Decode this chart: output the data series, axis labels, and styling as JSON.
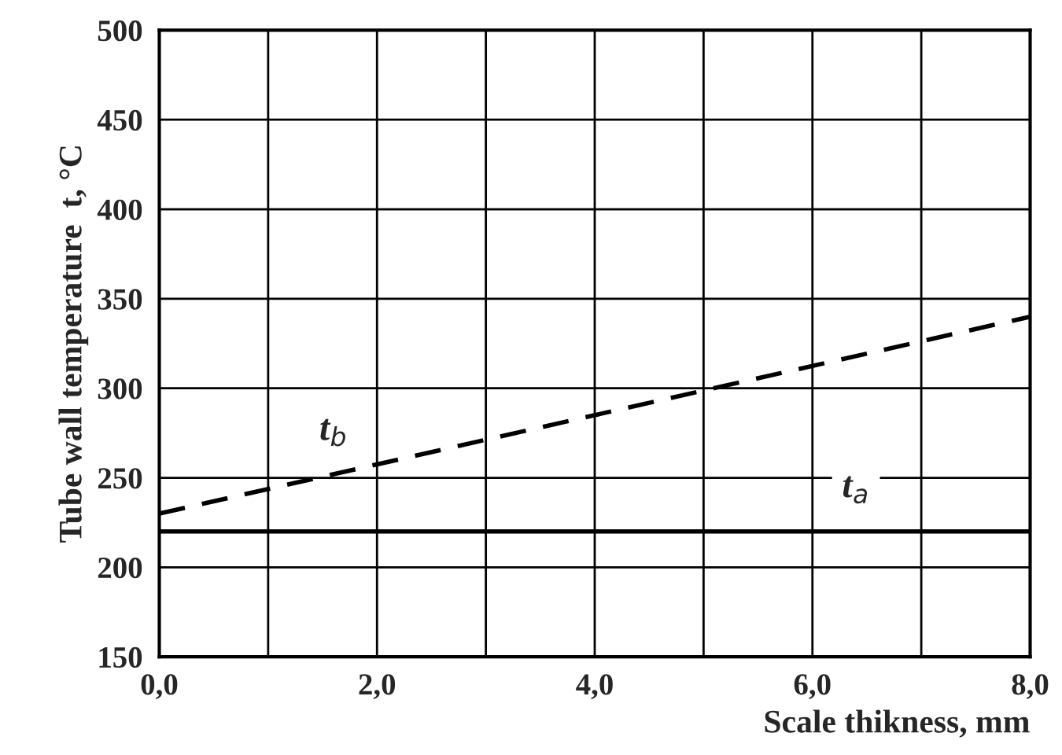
{
  "chart_data": {
    "type": "line",
    "xlabel": "Scale thikness, mm",
    "ylabel": "Tube wall temperature  t, °C",
    "x": [
      0,
      8
    ],
    "series": [
      {
        "name": "t$_{a}$",
        "color": "#000000",
        "values": [
          220,
          220
        ],
        "line_style": "solid"
      },
      {
        "name": "t$_{b}$",
        "color": "#000000",
        "values": [
          230,
          340
        ],
        "line_style": "dashed"
      }
    ],
    "xlim": [
      0,
      8
    ],
    "ylim": [
      150,
      500
    ],
    "xticks": [
      {
        "value": 0,
        "label": "0,0"
      },
      {
        "value": 1,
        "label": null
      },
      {
        "value": 2,
        "label": "2,0"
      },
      {
        "value": 3,
        "label": null
      },
      {
        "value": 4,
        "label": "4,0"
      },
      {
        "value": 5,
        "label": null
      },
      {
        "value": 6,
        "label": "6,0"
      },
      {
        "value": 7,
        "label": null
      },
      {
        "value": 8,
        "label": "8,0"
      }
    ],
    "yticks": [
      150,
      200,
      250,
      300,
      350,
      400,
      450,
      500
    ],
    "grid": true,
    "legend": false,
    "marker": "none"
  }
}
